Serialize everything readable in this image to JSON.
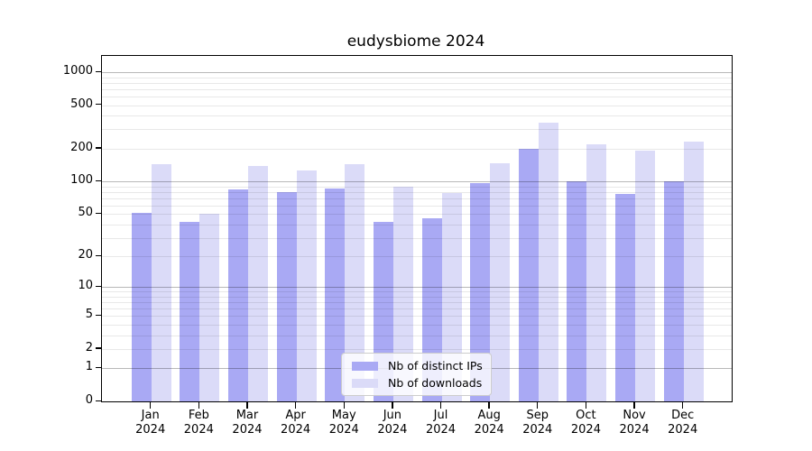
{
  "chart_data": {
    "type": "bar",
    "title": "eudysbiome 2024",
    "categories": [
      "Jan",
      "Feb",
      "Mar",
      "Apr",
      "May",
      "Jun",
      "Jul",
      "Aug",
      "Sep",
      "Oct",
      "Nov",
      "Dec"
    ],
    "year_label": "2024",
    "series": [
      {
        "name": "Nb of distinct IPs",
        "color": "#a9a9f4",
        "values": [
          51,
          42,
          84,
          80,
          86,
          42,
          46,
          97,
          200,
          100,
          77,
          100
        ]
      },
      {
        "name": "Nb of downloads",
        "color": "#dbdbf8",
        "values": [
          145,
          50,
          140,
          127,
          145,
          90,
          78,
          147,
          345,
          220,
          193,
          233
        ]
      }
    ],
    "y_ticks": [
      0,
      1,
      2,
      5,
      10,
      20,
      50,
      100,
      200,
      500,
      1000
    ],
    "y_scale": "log10(1+v)",
    "ylim": [
      0,
      1380
    ],
    "grid": true,
    "gridline_major_values": [
      1,
      10,
      100,
      1000
    ],
    "legend_position": "lower-center"
  }
}
